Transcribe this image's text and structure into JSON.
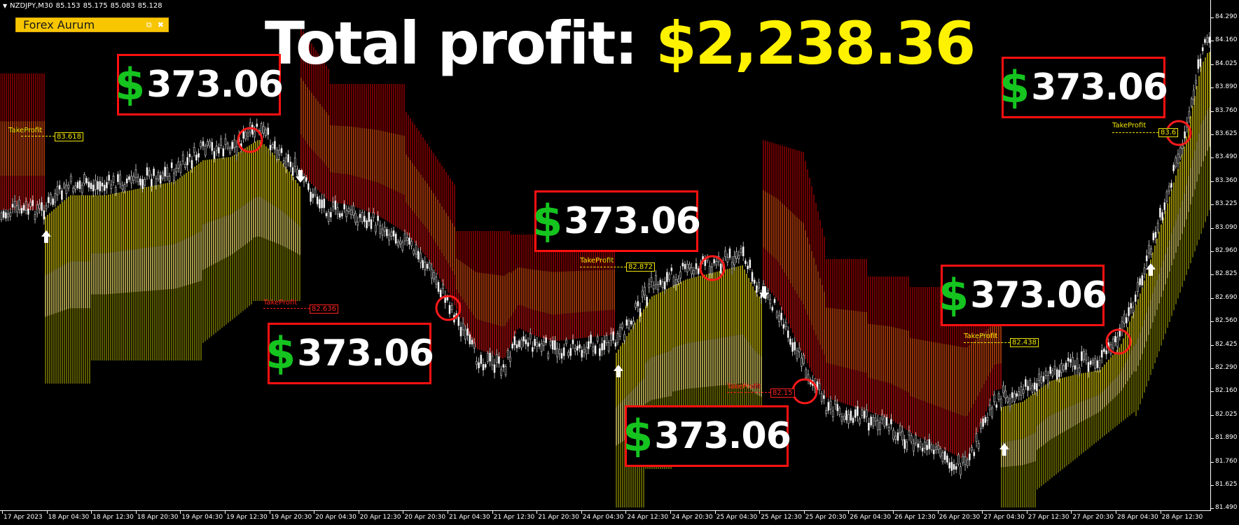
{
  "window": {
    "symbol": "NZDJPY,M30",
    "ohlc": [
      "85.153",
      "85.175",
      "85.083",
      "85.128"
    ]
  },
  "indicator": {
    "name": "Forex Aurum"
  },
  "headline": {
    "label": "Total profit:",
    "value": "$2,238.36"
  },
  "profit_boxes": [
    {
      "currency": "$",
      "amount": "373.06"
    },
    {
      "currency": "$",
      "amount": "373.06"
    },
    {
      "currency": "$",
      "amount": "373.06"
    },
    {
      "currency": "$",
      "amount": "373.06"
    },
    {
      "currency": "$",
      "amount": "373.06"
    },
    {
      "currency": "$",
      "amount": "373.06"
    }
  ],
  "take_profits": [
    {
      "label": "TakeProfit",
      "price": "83.618",
      "color": "#f2e600"
    },
    {
      "label": "TakeProfit",
      "price": "82.636",
      "color": "#ff2020"
    },
    {
      "label": "TakeProfit",
      "price": "82.872",
      "color": "#f2e600"
    },
    {
      "label": "TakeProfit",
      "price": "82.15",
      "color": "#ff2020"
    },
    {
      "label": "TakeProfit",
      "price": "82.438",
      "color": "#f2e600"
    },
    {
      "label": "TakeProfit",
      "price": "83.6",
      "color": "#f2e600"
    }
  ],
  "price_scale": [
    "84.290",
    "84.160",
    "84.025",
    "83.890",
    "83.760",
    "83.625",
    "83.490",
    "83.360",
    "83.225",
    "83.090",
    "82.960",
    "82.825",
    "82.690",
    "82.560",
    "82.425",
    "82.290",
    "82.160",
    "82.025",
    "81.890",
    "81.760",
    "81.625",
    "81.490"
  ],
  "time_axis": [
    "17 Apr 2023",
    "18 Apr 04:30",
    "18 Apr 12:30",
    "18 Apr 20:30",
    "19 Apr 04:30",
    "19 Apr 12:30",
    "19 Apr 20:30",
    "20 Apr 04:30",
    "20 Apr 12:30",
    "20 Apr 20:30",
    "21 Apr 04:30",
    "21 Apr 12:30",
    "21 Apr 20:30",
    "24 Apr 04:30",
    "24 Apr 12:30",
    "24 Apr 20:30",
    "25 Apr 04:30",
    "25 Apr 12:30",
    "25 Apr 20:30",
    "26 Apr 04:30",
    "26 Apr 12:30",
    "26 Apr 20:30",
    "27 Apr 04:30",
    "27 Apr 12:30",
    "27 Apr 20:30",
    "28 Apr 04:30",
    "28 Apr 12:30"
  ],
  "colors": {
    "background": "#000000",
    "candle": "#d8d8d8",
    "band_up_top": "#f0dd10",
    "band_up_mid": "#fff070",
    "band_up_low": "#eaea00",
    "band_down_top": "#d41010",
    "band_down_mid": "#f05010",
    "band_down_low": "#b00000",
    "signal_circle": "#ff1a1a",
    "arrow": "#ffffff",
    "profit_box_border": "#ff1010",
    "dollar_sign": "#15c41f",
    "headline_value": "#fff200"
  },
  "icons": {
    "arrow_up": "arrow-up-icon",
    "arrow_down": "arrow-down-icon",
    "circle": "signal-circle-icon"
  }
}
